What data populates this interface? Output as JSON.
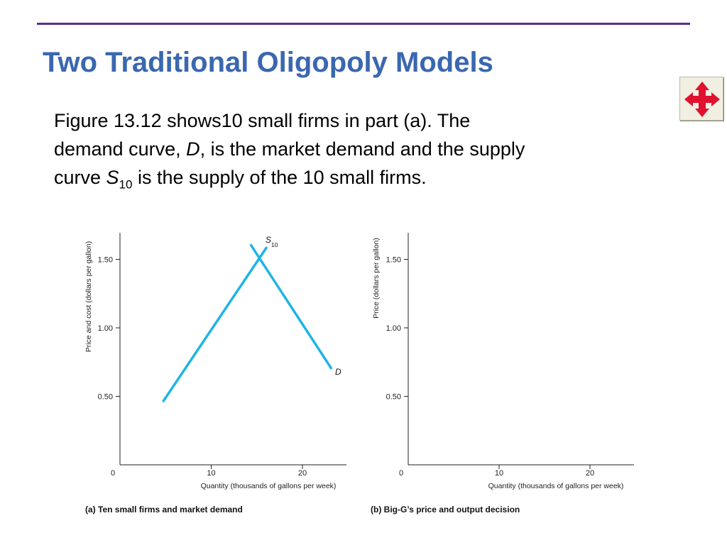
{
  "slide": {
    "title": "Two Traditional Oligopoly Models",
    "body": {
      "line1": "Figure 13.12 shows10 small firms in part (a). The",
      "line2_a": "demand curve, ",
      "line2_italic": "D",
      "line2_b": ", is the market demand and the supply",
      "line3_a": "curve ",
      "line3_italic": "S",
      "line3_sub": "10",
      "line3_b": " is the supply of the 10 small firms."
    },
    "nav_button": {
      "icon": "four-way-arrows-icon",
      "color": "#e0102f"
    }
  },
  "chart_data": [
    {
      "type": "line",
      "caption": "(a) Ten small firms and market demand",
      "xlabel": "Quantity (thousands of gallons per week)",
      "ylabel": "Price and cost (dollars per gallon)",
      "xlim": [
        0,
        25
      ],
      "ylim": [
        0,
        1.65
      ],
      "x_ticks": [
        10,
        20
      ],
      "y_ticks": [
        0.5,
        1.0,
        1.5
      ],
      "x_tick_labels": [
        "10",
        "20"
      ],
      "y_tick_labels": [
        "0.50",
        "1.00",
        "1.50"
      ],
      "origin_label": "0",
      "color": "#1fb4e6",
      "series": [
        {
          "name": "S",
          "name_sub": "10",
          "points": [
            [
              4.7,
              0.46
            ],
            [
              16.1,
              1.59
            ]
          ]
        },
        {
          "name": "D",
          "points": [
            [
              14.3,
              1.61
            ],
            [
              23.2,
              0.7
            ]
          ]
        }
      ]
    },
    {
      "type": "line",
      "caption": "(b) Big-G’s price and output decision",
      "xlabel": "Quantity (thousands of gallons per week)",
      "ylabel": "Price (dollars per gallon)",
      "xlim": [
        0,
        25
      ],
      "ylim": [
        0,
        1.65
      ],
      "x_ticks": [
        10,
        20
      ],
      "y_ticks": [
        0.5,
        1.0,
        1.5
      ],
      "x_tick_labels": [
        "10",
        "20"
      ],
      "y_tick_labels": [
        "0.50",
        "1.00",
        "1.50"
      ],
      "origin_label": "0",
      "series": []
    }
  ]
}
